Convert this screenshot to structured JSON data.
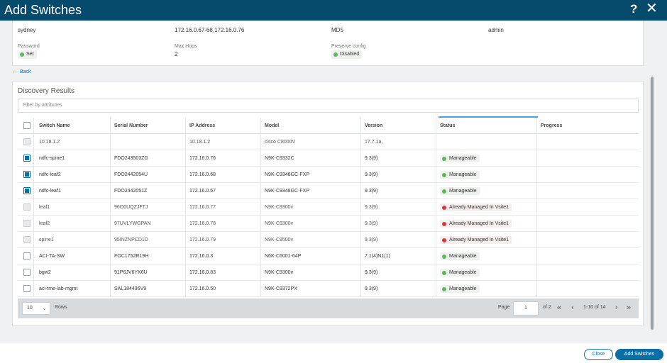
{
  "dialog": {
    "title": "Add Switches",
    "help_glyph": "?",
    "close_glyph": "✕"
  },
  "seed": {
    "site": "sydney",
    "seed_ips": "172.16.0.67-68,172.16.0.76",
    "auth": "MD5",
    "username": "admin",
    "password_label": "Password",
    "password_value": "Set",
    "max_hops_label": "Max Hops",
    "max_hops_value": "2",
    "preserve_label": "Preserve config",
    "preserve_value": "Disabled"
  },
  "back_label": "Back",
  "discovery": {
    "title": "Discovery Results",
    "filter_placeholder": "Filter by attributes",
    "columns": [
      "Switch Name",
      "Serial Number",
      "IP Address",
      "Model",
      "Version",
      "Status",
      "Progress"
    ],
    "rows": [
      {
        "name": "10.18.1.2",
        "serial": "",
        "ip": "10.18.1.2",
        "model": "cisco C8000V",
        "version": "17.7.1a,",
        "status": "",
        "status_color": "",
        "checked": false,
        "disabled": true
      },
      {
        "name": "ndfc-spine1",
        "serial": "FDO243503ZG",
        "ip": "172.16.0.76",
        "model": "N9K-C9332C",
        "version": "9.3(9)",
        "status": "Manageable",
        "status_color": "green",
        "checked": true,
        "disabled": false
      },
      {
        "name": "ndfc-leaf2",
        "serial": "FDO2442054U",
        "ip": "172.16.0.68",
        "model": "N9K-C9348GC-FXP",
        "version": "9.3(9)",
        "status": "Manageable",
        "status_color": "green",
        "checked": true,
        "disabled": false
      },
      {
        "name": "ndfc-leaf1",
        "serial": "FDO2442051Z",
        "ip": "172.16.0.67",
        "model": "N9K-C9348GC-FXP",
        "version": "9.3(9)",
        "status": "Manageable",
        "status_color": "green",
        "checked": true,
        "disabled": false
      },
      {
        "name": "leaf1",
        "serial": "96O0UQZJFTJ",
        "ip": "172.16.0.77",
        "model": "N9K-C9300v",
        "version": "9.3(9)",
        "status": "Already Managed In Vsite1",
        "status_color": "red",
        "checked": false,
        "disabled": true
      },
      {
        "name": "leaf2",
        "serial": "97UVLYWGPAN",
        "ip": "172.16.0.78",
        "model": "N9K-C9300v",
        "version": "9.3(9)",
        "status": "Already Managed In Vsite1",
        "status_color": "red",
        "checked": false,
        "disabled": true
      },
      {
        "name": "spine1",
        "serial": "95INZNPCD1D",
        "ip": "172.16.0.79",
        "model": "N9K-C9500v",
        "version": "9.3(9)",
        "status": "Already Managed In Vsite1",
        "status_color": "red",
        "checked": false,
        "disabled": true
      },
      {
        "name": "ACI-TA-SW",
        "serial": "FOC1752R19H",
        "ip": "172.16.0.3",
        "model": "N6K-C6001-64P",
        "version": "7.1(4)N1(1)",
        "status": "Manageable",
        "status_color": "green",
        "checked": false,
        "disabled": false
      },
      {
        "name": "bgw2",
        "serial": "91P6JV6YK6U",
        "ip": "172.16.0.83",
        "model": "N9K-C9300v",
        "version": "9.3(9)",
        "status": "Manageable",
        "status_color": "green",
        "checked": false,
        "disabled": false
      },
      {
        "name": "aci-tme-lab-mgmt",
        "serial": "SAL184436V9",
        "ip": "172.16.0.50",
        "model": "N9K-C9372PX",
        "version": "9.3(9)",
        "status": "Manageable",
        "status_color": "green",
        "checked": false,
        "disabled": false
      }
    ]
  },
  "pager": {
    "rows_value": "10",
    "rows_label": "Rows",
    "page_label": "Page",
    "page_value": "1",
    "of_label": "of 2",
    "range": "1-10 of 14"
  },
  "footer": {
    "close_label": "Close",
    "add_label": "Add Switches"
  },
  "colors": {
    "titlebar": "#064a6c",
    "accent": "#0b6fa4",
    "status_green": "#5cb85c",
    "status_red": "#d9363e"
  }
}
